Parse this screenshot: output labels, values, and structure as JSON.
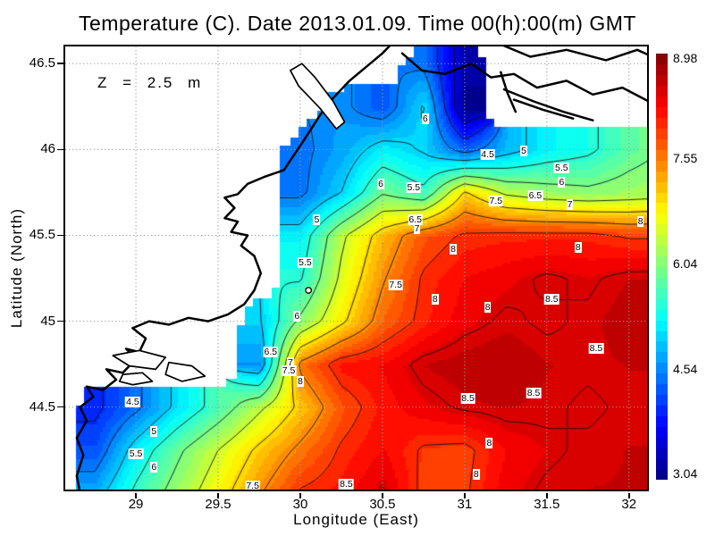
{
  "header": {
    "title": "Temperature (C). Date 2013.01.09. Time 00(h):00(m) GMT"
  },
  "annotation": {
    "text": "Z = 2.5 m"
  },
  "axes": {
    "x": {
      "label": "Longitude (East)",
      "ticks": [
        "29",
        "29.5",
        "30",
        "30.5",
        "31",
        "31.5",
        "32"
      ],
      "tick_values": [
        29,
        29.5,
        30,
        30.5,
        31,
        31.5,
        32
      ],
      "min": 28.57,
      "max": 32.11
    },
    "y": {
      "label": "Latitude (North)",
      "ticks": [
        "44.5",
        "45",
        "45.5",
        "46",
        "46.5"
      ],
      "tick_values": [
        44.5,
        45,
        45.5,
        46,
        46.5
      ],
      "min": 44.02,
      "max": 46.6
    }
  },
  "colorbar": {
    "labels": [
      "8.98",
      "7.55",
      "6.04",
      "4.54",
      "3.04"
    ],
    "values": [
      8.98,
      7.55,
      6.04,
      4.54,
      3.04
    ],
    "vmin": 2.95,
    "vmax": 9.05,
    "colormap": "jet"
  },
  "chart_data": {
    "type": "heatmap",
    "title": "Temperature (C). Date 2013.01.09. Time 00(h):00(m) GMT",
    "xlabel": "Longitude (East)",
    "ylabel": "Latitude (North)",
    "units": "C",
    "depth_annotation": "Z = 2.5 m",
    "datetime": "2013.01.09 00(h):00(m) GMT",
    "xlim": [
      28.57,
      32.11
    ],
    "ylim": [
      44.02,
      46.6
    ],
    "grid_lon": [
      28.5,
      28.75,
      29.0,
      29.25,
      29.5,
      29.75,
      30.0,
      30.25,
      30.5,
      30.75,
      31.0,
      31.25,
      31.5,
      31.75,
      32.0,
      32.25
    ],
    "grid_lat": [
      46.75,
      46.5,
      46.25,
      46.0,
      45.75,
      45.5,
      45.25,
      45.0,
      44.75,
      44.5,
      44.25,
      44.0
    ],
    "temperature": [
      [
        null,
        null,
        null,
        null,
        null,
        null,
        null,
        null,
        null,
        null,
        null,
        null,
        null,
        null,
        null,
        null
      ],
      [
        null,
        null,
        null,
        null,
        null,
        null,
        null,
        null,
        null,
        4.4,
        3.2,
        null,
        null,
        null,
        null,
        null
      ],
      [
        null,
        null,
        null,
        null,
        null,
        null,
        null,
        4.6,
        4.2,
        5.05,
        3.0,
        null,
        null,
        null,
        null,
        null
      ],
      [
        null,
        null,
        null,
        null,
        null,
        null,
        4.4,
        4.7,
        5.2,
        4.95,
        4.3,
        4.8,
        5.2,
        5.4,
        5.8,
        6.05
      ],
      [
        null,
        null,
        null,
        null,
        null,
        null,
        4.4,
        5.0,
        5.95,
        5.6,
        7.05,
        6.4,
        6.2,
        6.1,
        6.2,
        6.3
      ],
      [
        null,
        null,
        null,
        null,
        null,
        null,
        5.2,
        6.4,
        7.2,
        7.8,
        8.05,
        8.1,
        8.1,
        8.1,
        7.95,
        7.95
      ],
      [
        null,
        null,
        null,
        null,
        null,
        null,
        5.45,
        6.6,
        7.45,
        8.05,
        8.3,
        8.4,
        8.55,
        8.45,
        8.6,
        8.6
      ],
      [
        null,
        null,
        null,
        null,
        null,
        4.95,
        6.1,
        6.9,
        7.7,
        8.1,
        8.4,
        8.55,
        8.45,
        8.55,
        8.7,
        8.7
      ],
      [
        null,
        null,
        null,
        null,
        null,
        4.6,
        7.6,
        8.2,
        8.3,
        8.6,
        8.7,
        8.75,
        8.6,
        8.55,
        8.6,
        8.6
      ],
      [
        null,
        3.9,
        4.4,
        5.1,
        5.7,
        6.4,
        7.1,
        7.8,
        8.2,
        8.4,
        8.55,
        8.6,
        8.55,
        8.45,
        8.55,
        8.55
      ],
      [
        null,
        4.2,
        5.2,
        5.9,
        6.5,
        7.1,
        7.6,
        8.05,
        8.3,
        7.95,
        7.9,
        8.3,
        8.45,
        8.55,
        8.6,
        8.6
      ],
      [
        null,
        4.8,
        5.6,
        6.2,
        6.8,
        7.45,
        8.05,
        8.2,
        8.55,
        7.9,
        7.95,
        8.4,
        8.55,
        8.6,
        8.6,
        8.6
      ]
    ],
    "contour_levels": [
      3.5,
      4,
      4.5,
      5,
      5.5,
      6,
      6.5,
      7,
      7.5,
      8,
      8.5
    ],
    "contour_labels": [
      {
        "v": "6",
        "lon": 30.76,
        "lat": 46.18
      },
      {
        "v": "4.5",
        "lon": 31.14,
        "lat": 45.97
      },
      {
        "v": "5",
        "lon": 31.36,
        "lat": 45.99
      },
      {
        "v": "5.5",
        "lon": 31.59,
        "lat": 45.89
      },
      {
        "v": "6",
        "lon": 31.59,
        "lat": 45.81
      },
      {
        "v": "6.5",
        "lon": 31.43,
        "lat": 45.73
      },
      {
        "v": "7",
        "lon": 31.64,
        "lat": 45.68
      },
      {
        "v": "8",
        "lon": 32.07,
        "lat": 45.58
      },
      {
        "v": "6",
        "lon": 30.49,
        "lat": 45.8
      },
      {
        "v": "5.5",
        "lon": 30.69,
        "lat": 45.78
      },
      {
        "v": "6.5",
        "lon": 30.7,
        "lat": 45.59
      },
      {
        "v": "7",
        "lon": 30.71,
        "lat": 45.54
      },
      {
        "v": "7.5",
        "lon": 31.19,
        "lat": 45.7
      },
      {
        "v": "8",
        "lon": 30.93,
        "lat": 45.42
      },
      {
        "v": "8",
        "lon": 31.69,
        "lat": 45.43
      },
      {
        "v": "5",
        "lon": 30.1,
        "lat": 45.59
      },
      {
        "v": "5.5",
        "lon": 30.03,
        "lat": 45.34
      },
      {
        "v": "7.5",
        "lon": 30.58,
        "lat": 45.21
      },
      {
        "v": "6",
        "lon": 29.98,
        "lat": 45.03
      },
      {
        "v": "8",
        "lon": 30.82,
        "lat": 45.13
      },
      {
        "v": "8",
        "lon": 31.14,
        "lat": 45.08
      },
      {
        "v": "8.5",
        "lon": 31.53,
        "lat": 45.13
      },
      {
        "v": "8.5",
        "lon": 31.8,
        "lat": 44.84
      },
      {
        "v": "6.5",
        "lon": 29.82,
        "lat": 44.82
      },
      {
        "v": "7",
        "lon": 29.94,
        "lat": 44.76
      },
      {
        "v": "7.5",
        "lon": 29.93,
        "lat": 44.71
      },
      {
        "v": "8",
        "lon": 30.0,
        "lat": 44.65
      },
      {
        "v": "4.5",
        "lon": 28.98,
        "lat": 44.53
      },
      {
        "v": "5",
        "lon": 29.11,
        "lat": 44.36
      },
      {
        "v": "5.5",
        "lon": 29.0,
        "lat": 44.23
      },
      {
        "v": "6",
        "lon": 29.11,
        "lat": 44.15
      },
      {
        "v": "8.5",
        "lon": 31.02,
        "lat": 44.55
      },
      {
        "v": "8.5",
        "lon": 31.42,
        "lat": 44.58
      },
      {
        "v": "8",
        "lon": 31.15,
        "lat": 44.29
      },
      {
        "v": "8",
        "lon": 31.07,
        "lat": 44.11
      },
      {
        "v": "8.5",
        "lon": 30.28,
        "lat": 44.05
      },
      {
        "v": "7.5",
        "lon": 29.71,
        "lat": 44.04
      }
    ],
    "coastlines": [
      [
        [
          28.66,
          44.0
        ],
        [
          28.64,
          44.1
        ],
        [
          28.68,
          44.22
        ],
        [
          28.64,
          44.32
        ],
        [
          28.7,
          44.42
        ],
        [
          28.66,
          44.5
        ],
        [
          28.74,
          44.56
        ],
        [
          28.7,
          44.62
        ],
        [
          28.8,
          44.6
        ],
        [
          28.88,
          44.66
        ],
        [
          28.82,
          44.72
        ],
        [
          28.92,
          44.7
        ],
        [
          29.0,
          44.78
        ],
        [
          28.94,
          44.84
        ],
        [
          29.02,
          44.82
        ],
        [
          29.06,
          44.9
        ],
        [
          28.98,
          44.96
        ],
        [
          29.08,
          45.0
        ],
        [
          29.2,
          44.98
        ],
        [
          29.32,
          45.02
        ],
        [
          29.44,
          45.0
        ],
        [
          29.56,
          45.04
        ],
        [
          29.66,
          45.1
        ],
        [
          29.72,
          45.18
        ],
        [
          29.76,
          45.28
        ],
        [
          29.72,
          45.38
        ],
        [
          29.64,
          45.44
        ],
        [
          29.68,
          45.5
        ],
        [
          29.58,
          45.52
        ],
        [
          29.62,
          45.58
        ],
        [
          29.54,
          45.6
        ],
        [
          29.6,
          45.66
        ],
        [
          29.54,
          45.72
        ],
        [
          29.62,
          45.74
        ],
        [
          29.68,
          45.8
        ],
        [
          29.78,
          45.84
        ],
        [
          29.9,
          45.88
        ],
        [
          29.97,
          45.98
        ],
        [
          30.04,
          46.08
        ],
        [
          30.12,
          46.2
        ],
        [
          30.2,
          46.3
        ],
        [
          30.3,
          46.4
        ],
        [
          30.4,
          46.48
        ],
        [
          30.5,
          46.56
        ],
        [
          30.56,
          46.62
        ]
      ],
      [
        [
          31.2,
          46.62
        ],
        [
          31.4,
          46.54
        ],
        [
          31.62,
          46.58
        ],
        [
          31.86,
          46.52
        ],
        [
          32.05,
          46.58
        ],
        [
          32.12,
          46.55
        ]
      ],
      [
        [
          30.62,
          46.56
        ],
        [
          30.74,
          46.46
        ],
        [
          30.88,
          46.44
        ],
        [
          31.04,
          46.5
        ],
        [
          31.16,
          46.42
        ],
        [
          31.3,
          46.44
        ],
        [
          31.44,
          46.36
        ],
        [
          31.62,
          46.4
        ],
        [
          31.78,
          46.32
        ],
        [
          31.96,
          46.36
        ],
        [
          32.12,
          46.28
        ]
      ],
      [
        [
          31.24,
          46.35
        ],
        [
          31.42,
          46.28
        ],
        [
          31.6,
          46.22
        ],
        [
          31.78,
          46.17
        ]
      ],
      [
        [
          31.3,
          46.29
        ],
        [
          31.48,
          46.23
        ],
        [
          31.66,
          46.18
        ]
      ],
      [
        [
          31.22,
          46.45
        ],
        [
          31.26,
          46.33
        ],
        [
          31.31,
          46.22
        ]
      ]
    ],
    "lakes": [
      [
        [
          29.94,
          46.46
        ],
        [
          30.01,
          46.5
        ],
        [
          30.09,
          46.42
        ],
        [
          30.2,
          46.28
        ],
        [
          30.27,
          46.16
        ],
        [
          30.22,
          46.12
        ],
        [
          30.12,
          46.24
        ],
        [
          29.99,
          46.37
        ],
        [
          29.94,
          46.46
        ]
      ],
      [
        [
          28.86,
          44.8
        ],
        [
          29.02,
          44.83
        ],
        [
          29.18,
          44.79
        ],
        [
          29.12,
          44.72
        ],
        [
          28.96,
          44.74
        ],
        [
          28.86,
          44.8
        ]
      ],
      [
        [
          29.2,
          44.76
        ],
        [
          29.34,
          44.74
        ],
        [
          29.42,
          44.68
        ],
        [
          29.28,
          44.65
        ],
        [
          29.18,
          44.69
        ],
        [
          29.2,
          44.76
        ]
      ],
      [
        [
          28.92,
          44.69
        ],
        [
          29.04,
          44.7
        ],
        [
          29.1,
          44.65
        ],
        [
          28.98,
          44.63
        ],
        [
          28.9,
          44.65
        ],
        [
          28.92,
          44.69
        ]
      ]
    ],
    "marker": {
      "lon": 30.05,
      "lat": 45.18
    },
    "grid_on": true,
    "legend_position": "right-colorbar"
  }
}
